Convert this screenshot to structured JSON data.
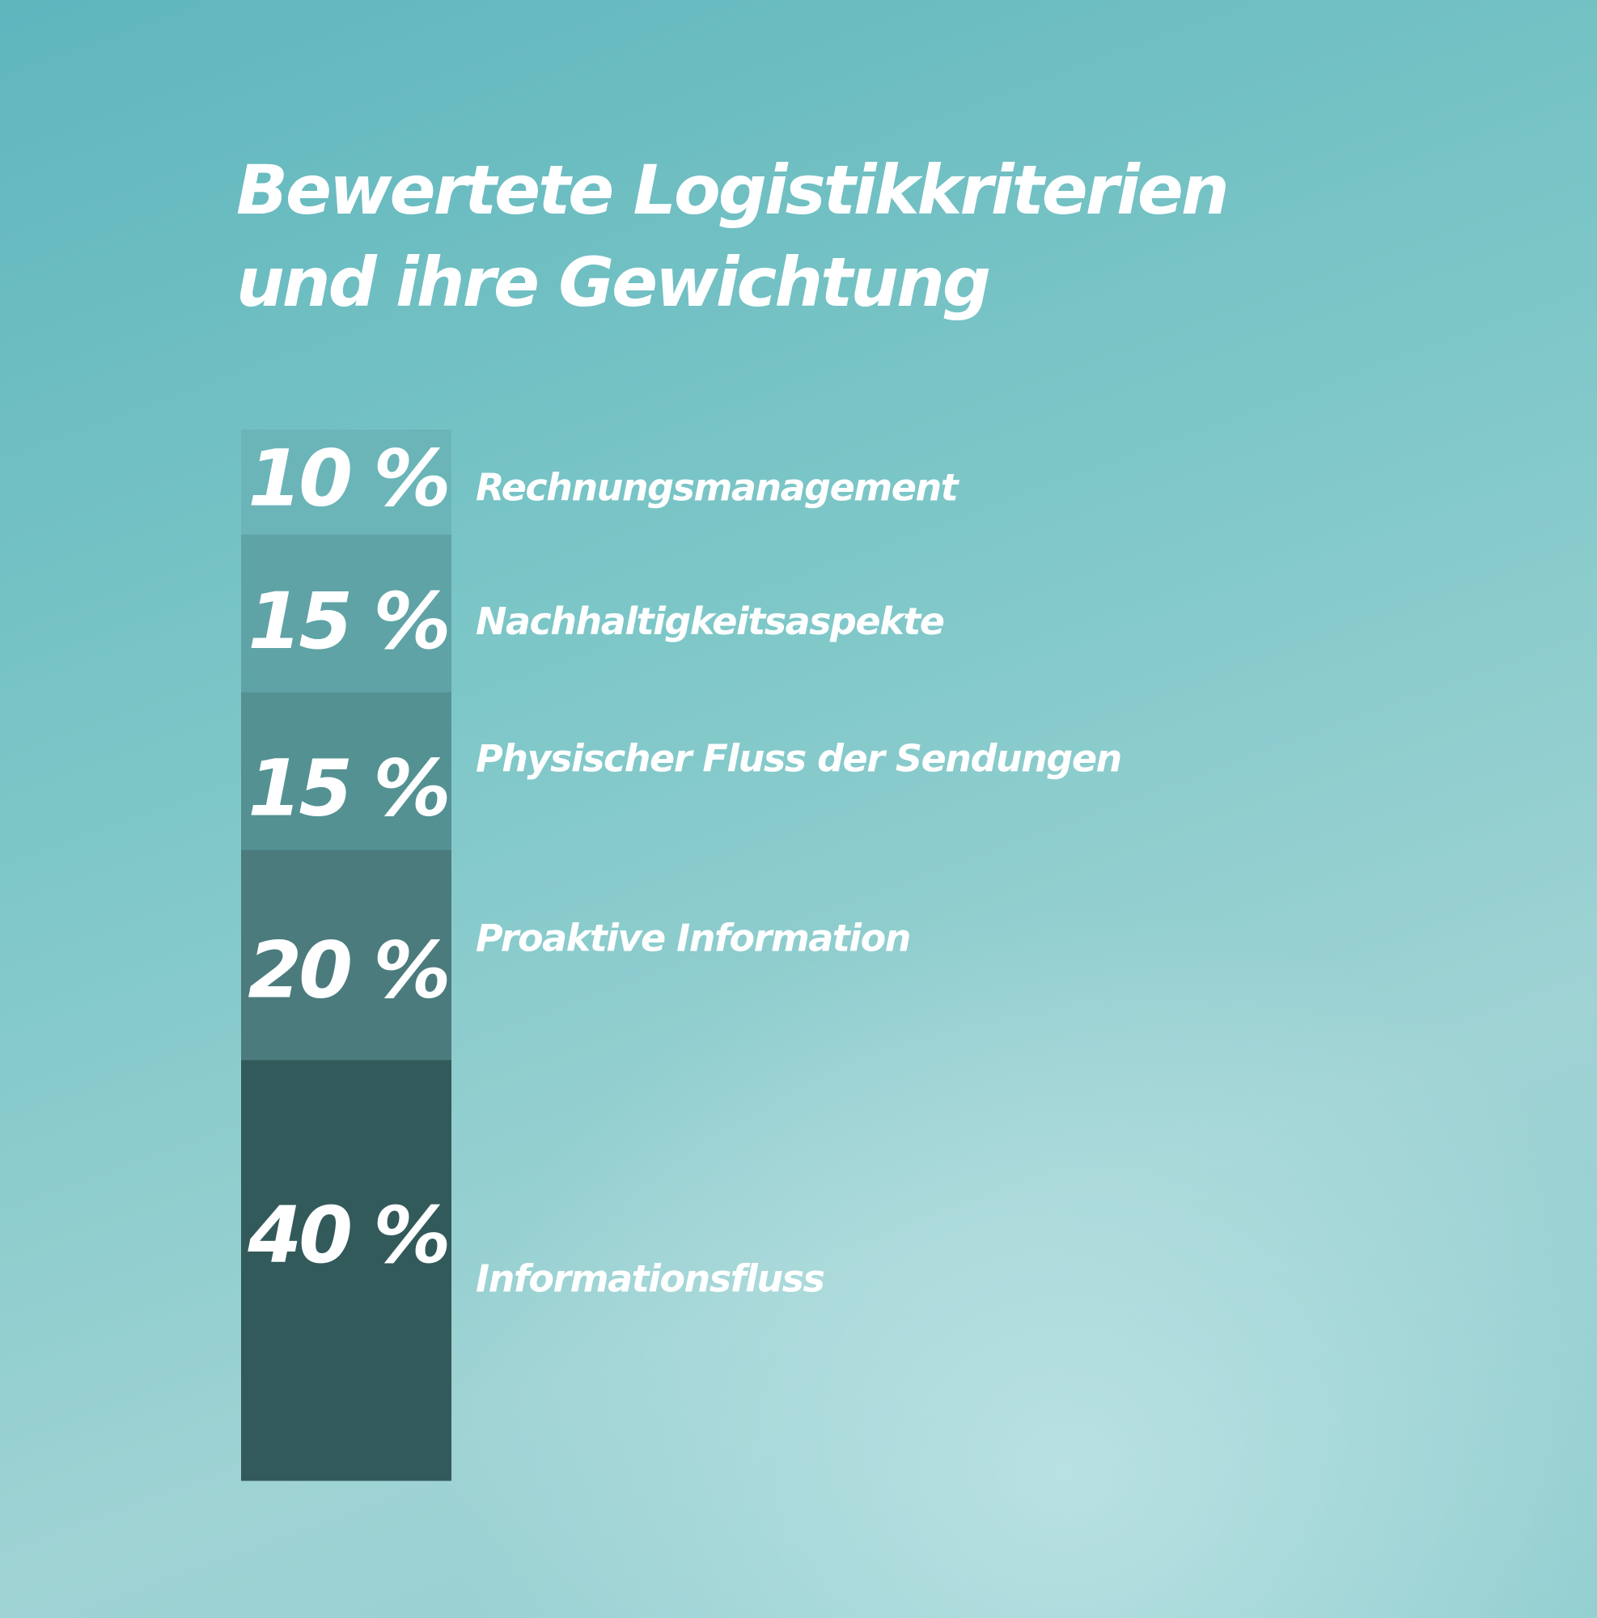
{
  "chart_data": {
    "type": "bar",
    "stacked": true,
    "unit": "%",
    "title": [
      "Bewertete Logistikkriterien",
      "und ihre Gewichtung"
    ],
    "xlabel": "",
    "ylabel": "",
    "grid": false,
    "segments": [
      {
        "label": "Rechnungsmanagement",
        "value": 10,
        "display": "10 %",
        "color": "#6bb5b8"
      },
      {
        "label": "Nachhaltigkeitsaspekte",
        "value": 15,
        "display": "15 %",
        "color": "#5fa3a6"
      },
      {
        "label": "Physischer Fluss der Sendungen",
        "value": 15,
        "display": "15 %",
        "color": "#549193"
      },
      {
        "label": "Proaktive Information",
        "value": 20,
        "display": "20 %",
        "color": "#4b7b7d"
      },
      {
        "label": "Informationsfluss",
        "value": 40,
        "display": "40 %",
        "color": "#335a5b"
      }
    ]
  }
}
